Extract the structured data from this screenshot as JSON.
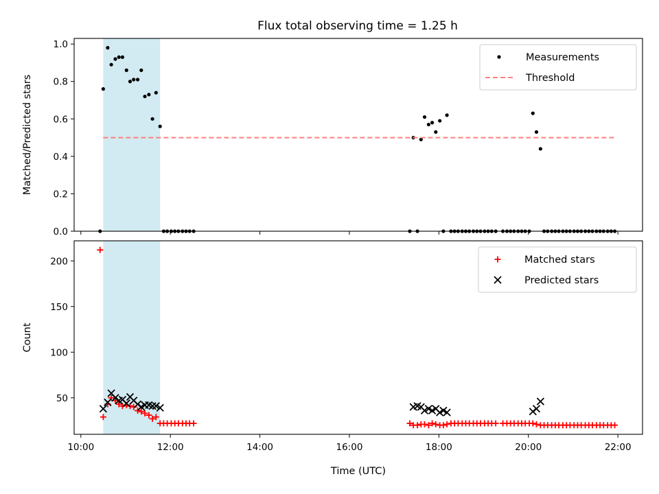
{
  "figure": {
    "title": "Flux total observing time = 1.25 h"
  },
  "colors": {
    "highlight": "#add8e6",
    "measurement": "#000000",
    "threshold": "#ff7f7f",
    "matched": "#ff0000",
    "predicted": "#000000"
  },
  "chart_data": [
    {
      "type": "scatter",
      "title": "Flux total observing time = 1.25 h",
      "xlabel": "",
      "ylabel": "Matched/Predicted stars",
      "xlim": [
        9.85,
        22.55
      ],
      "ylim": [
        0,
        1.03
      ],
      "xticks": [
        10,
        12,
        14,
        16,
        18,
        20,
        22
      ],
      "xtick_labels": [
        "",
        "",
        "",
        "",
        "",
        "",
        ""
      ],
      "yticks": [
        0,
        0.2,
        0.4,
        0.6,
        0.8,
        1.0
      ],
      "ytick_labels": [
        "0.0",
        "0.2",
        "0.4",
        "0.6",
        "0.8",
        "1.0"
      ],
      "highlight_span": [
        10.5,
        11.77
      ],
      "legend_position": "upper right",
      "series": [
        {
          "name": "Measurements",
          "kind": "points",
          "x": [
            10.43,
            10.5,
            10.6,
            10.68,
            10.77,
            10.85,
            10.93,
            11.02,
            11.1,
            11.18,
            11.27,
            11.35,
            11.43,
            11.52,
            11.6,
            11.68,
            11.77,
            11.85,
            11.93,
            12.02,
            12.1,
            12.18,
            12.27,
            12.35,
            12.43,
            12.52,
            17.35,
            17.43,
            17.52,
            17.6,
            17.68,
            17.77,
            17.85,
            17.93,
            18.02,
            18.1,
            18.18,
            18.27,
            18.35,
            18.43,
            18.52,
            18.6,
            18.68,
            18.77,
            18.85,
            18.93,
            19.02,
            19.1,
            19.18,
            19.27,
            19.43,
            19.52,
            19.6,
            19.68,
            19.77,
            19.85,
            19.93,
            20.02,
            20.1,
            20.18,
            20.27,
            20.35,
            20.43,
            20.52,
            20.6,
            20.68,
            20.77,
            20.85,
            20.93,
            21.02,
            21.1,
            21.18,
            21.27,
            21.35,
            21.43,
            21.52,
            21.6,
            21.68,
            21.77,
            21.85,
            21.93
          ],
          "y": [
            0,
            0.76,
            0.98,
            0.89,
            0.92,
            0.93,
            0.93,
            0.86,
            0.8,
            0.81,
            0.81,
            0.86,
            0.72,
            0.73,
            0.6,
            0.74,
            0.56,
            0,
            0,
            0,
            0,
            0,
            0,
            0,
            0,
            0,
            0,
            0.5,
            0,
            0.49,
            0.61,
            0.57,
            0.58,
            0.53,
            0.59,
            0,
            0.62,
            0,
            0,
            0,
            0,
            0,
            0,
            0,
            0,
            0,
            0,
            0,
            0,
            0,
            0,
            0,
            0,
            0,
            0,
            0,
            0,
            0,
            0.63,
            0.53,
            0.44,
            0,
            0,
            0,
            0,
            0,
            0,
            0,
            0,
            0,
            0,
            0,
            0,
            0,
            0,
            0,
            0,
            0,
            0,
            0,
            0
          ]
        },
        {
          "name": "Threshold",
          "kind": "dashed-line",
          "x": [
            10.5,
            21.95
          ],
          "y": [
            0.5,
            0.5
          ]
        }
      ]
    },
    {
      "type": "scatter",
      "title": "",
      "xlabel": "Time (UTC)",
      "ylabel": "Count",
      "xlim": [
        9.85,
        22.55
      ],
      "ylim": [
        10,
        222
      ],
      "xticks": [
        10,
        12,
        14,
        16,
        18,
        20,
        22
      ],
      "xtick_labels": [
        "10:00",
        "12:00",
        "14:00",
        "16:00",
        "18:00",
        "20:00",
        "22:00"
      ],
      "yticks": [
        50,
        100,
        150,
        200
      ],
      "ytick_labels": [
        "50",
        "100",
        "150",
        "200"
      ],
      "highlight_span": [
        10.5,
        11.77
      ],
      "legend_position": "upper right",
      "series": [
        {
          "name": "Matched stars",
          "marker": "plus",
          "x": [
            10.43,
            10.5,
            10.6,
            10.68,
            10.77,
            10.85,
            10.93,
            11.02,
            11.1,
            11.18,
            11.27,
            11.35,
            11.43,
            11.52,
            11.6,
            11.68,
            11.77,
            11.85,
            11.93,
            12.02,
            12.1,
            12.18,
            12.27,
            12.35,
            12.43,
            12.52,
            17.35,
            17.43,
            17.52,
            17.6,
            17.68,
            17.77,
            17.85,
            17.93,
            18.02,
            18.1,
            18.18,
            18.27,
            18.35,
            18.43,
            18.52,
            18.6,
            18.68,
            18.77,
            18.85,
            18.93,
            19.02,
            19.1,
            19.18,
            19.27,
            19.43,
            19.52,
            19.6,
            19.68,
            19.77,
            19.85,
            19.93,
            20.02,
            20.1,
            20.18,
            20.27,
            20.35,
            20.43,
            20.52,
            20.6,
            20.68,
            20.77,
            20.85,
            20.93,
            21.02,
            21.1,
            21.18,
            21.27,
            21.35,
            21.43,
            21.52,
            21.6,
            21.68,
            21.77,
            21.85,
            21.93
          ],
          "y": [
            212,
            29,
            43,
            50,
            47,
            43,
            41,
            42,
            41,
            40,
            36,
            35,
            33,
            31,
            27,
            29,
            22,
            22,
            22,
            22,
            22,
            22,
            22,
            22,
            22,
            22,
            22,
            20,
            20,
            21,
            21,
            20,
            22,
            21,
            20,
            20,
            21,
            22,
            22,
            22,
            22,
            22,
            22,
            22,
            22,
            22,
            22,
            22,
            22,
            22,
            22,
            22,
            22,
            22,
            22,
            22,
            22,
            22,
            22,
            21,
            20,
            20,
            20,
            20,
            20,
            20,
            20,
            20,
            20,
            20,
            20,
            20,
            20,
            20,
            20,
            20,
            20,
            20,
            20,
            20,
            20
          ]
        },
        {
          "name": "Predicted stars",
          "marker": "x",
          "x": [
            10.5,
            10.6,
            10.68,
            10.77,
            10.85,
            10.93,
            11.02,
            11.1,
            11.18,
            11.27,
            11.35,
            11.43,
            11.52,
            11.6,
            11.68,
            11.77,
            17.43,
            17.52,
            17.6,
            17.68,
            17.77,
            17.85,
            17.93,
            18.02,
            18.1,
            18.18,
            20.1,
            20.18,
            20.27
          ],
          "y": [
            38,
            45,
            55,
            50,
            47,
            48,
            44,
            51,
            47,
            43,
            40,
            42,
            42,
            41,
            41,
            39,
            40,
            41,
            40,
            36,
            38,
            36,
            38,
            34,
            36,
            34,
            35,
            38,
            46
          ]
        }
      ]
    }
  ]
}
